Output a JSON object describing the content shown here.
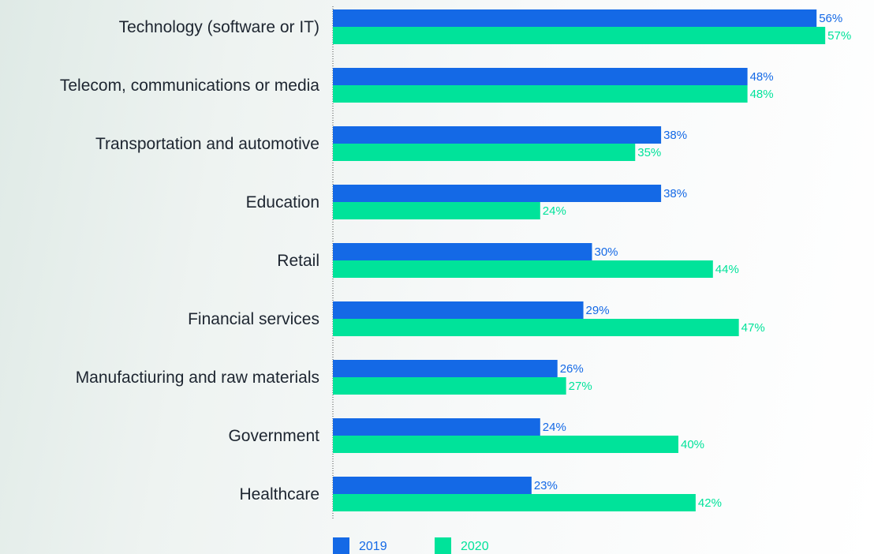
{
  "chart_data": {
    "type": "bar",
    "orientation": "horizontal",
    "categories": [
      "Technology (software or IT)",
      "Telecom, communications or media",
      "Transportation and automotive",
      "Education",
      "Retail",
      "Financial services",
      "Manufactiuring and raw materials",
      "Government",
      "Healthcare"
    ],
    "series": [
      {
        "name": "2019",
        "color": "#1469e6",
        "values": [
          56,
          48,
          38,
          38,
          30,
          29,
          26,
          24,
          23
        ],
        "labels": [
          "56%",
          "48%",
          "38%",
          "38%",
          "30%",
          "29%",
          "26%",
          "24%",
          "23%"
        ]
      },
      {
        "name": "2020",
        "color": "#00e39a",
        "values": [
          57,
          48,
          35,
          24,
          44,
          47,
          27,
          40,
          42
        ],
        "labels": [
          "57%",
          "48%",
          "35%",
          "24%",
          "44%",
          "47%",
          "27%",
          "40%",
          "42%"
        ]
      }
    ],
    "xlim": [
      0,
      60
    ],
    "grid": false,
    "legend_position": "bottom-left"
  }
}
